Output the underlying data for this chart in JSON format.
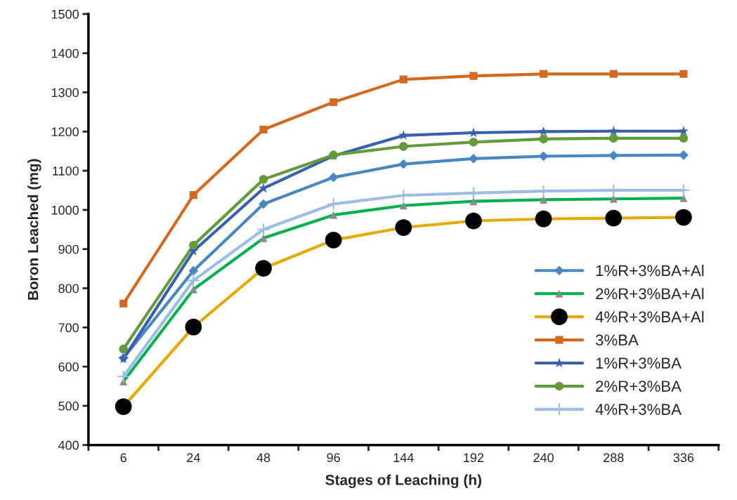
{
  "chart_data": {
    "type": "line",
    "xlabel": "Stages of Leaching (h)",
    "ylabel": "Boron Leached (mg)",
    "categories": [
      "6",
      "24",
      "48",
      "96",
      "144",
      "192",
      "240",
      "288",
      "336"
    ],
    "ylim": [
      400,
      1500
    ],
    "yticks": [
      400,
      500,
      600,
      700,
      800,
      900,
      1000,
      1100,
      1200,
      1300,
      1400,
      1500
    ],
    "grid": false,
    "legend": "lower right",
    "line_style": "solid",
    "series": [
      {
        "name": "1%R+3%BA+Al",
        "color": "#4a86c0",
        "marker": "diamond",
        "values": [
          622,
          845,
          1015,
          1083,
          1117,
          1131,
          1137,
          1139,
          1140
        ]
      },
      {
        "name": "2%R+3%BA+Al",
        "color": "#00b050",
        "colors": [
          "#8c8c8c",
          "#8c8c8c",
          "#8c8c8c",
          "#8c8c8c",
          "#8c8c8c",
          "#8c8c8c",
          "#8c8c8c",
          "#8c8c8c",
          "#8c8c8c"
        ],
        "marker": "triangle",
        "values": [
          562,
          797,
          928,
          987,
          1011,
          1022,
          1026,
          1028,
          1030
        ]
      },
      {
        "name": "4%R+3%BA+Al",
        "color": "#e5a900",
        "colors": [
          "#000000",
          "#000000",
          "#000000",
          "#000000",
          "#000000",
          "#000000",
          "#000000",
          "#000000",
          "#000000"
        ],
        "marker": "circle",
        "values": [
          498,
          701,
          851,
          923,
          955,
          972,
          977,
          979,
          981
        ]
      },
      {
        "name": "3%BA",
        "color": "#d2691e",
        "marker": "square",
        "values": [
          761,
          1038,
          1205,
          1275,
          1333,
          1342,
          1347,
          1347,
          1347
        ]
      },
      {
        "name": "1%R+3%BA",
        "color": "#3a5fad",
        "marker": "star",
        "values": [
          620,
          895,
          1055,
          1138,
          1190,
          1197,
          1200,
          1201,
          1201
        ]
      },
      {
        "name": "2%R+3%BA",
        "color": "#629a3c",
        "marker": "circle",
        "values": [
          645,
          910,
          1078,
          1140,
          1162,
          1173,
          1181,
          1183,
          1183
        ]
      },
      {
        "name": "4%R+3%BA",
        "color": "#9dbde3",
        "marker": "cross",
        "values": [
          575,
          820,
          950,
          1015,
          1037,
          1043,
          1048,
          1050,
          1050
        ]
      }
    ]
  }
}
